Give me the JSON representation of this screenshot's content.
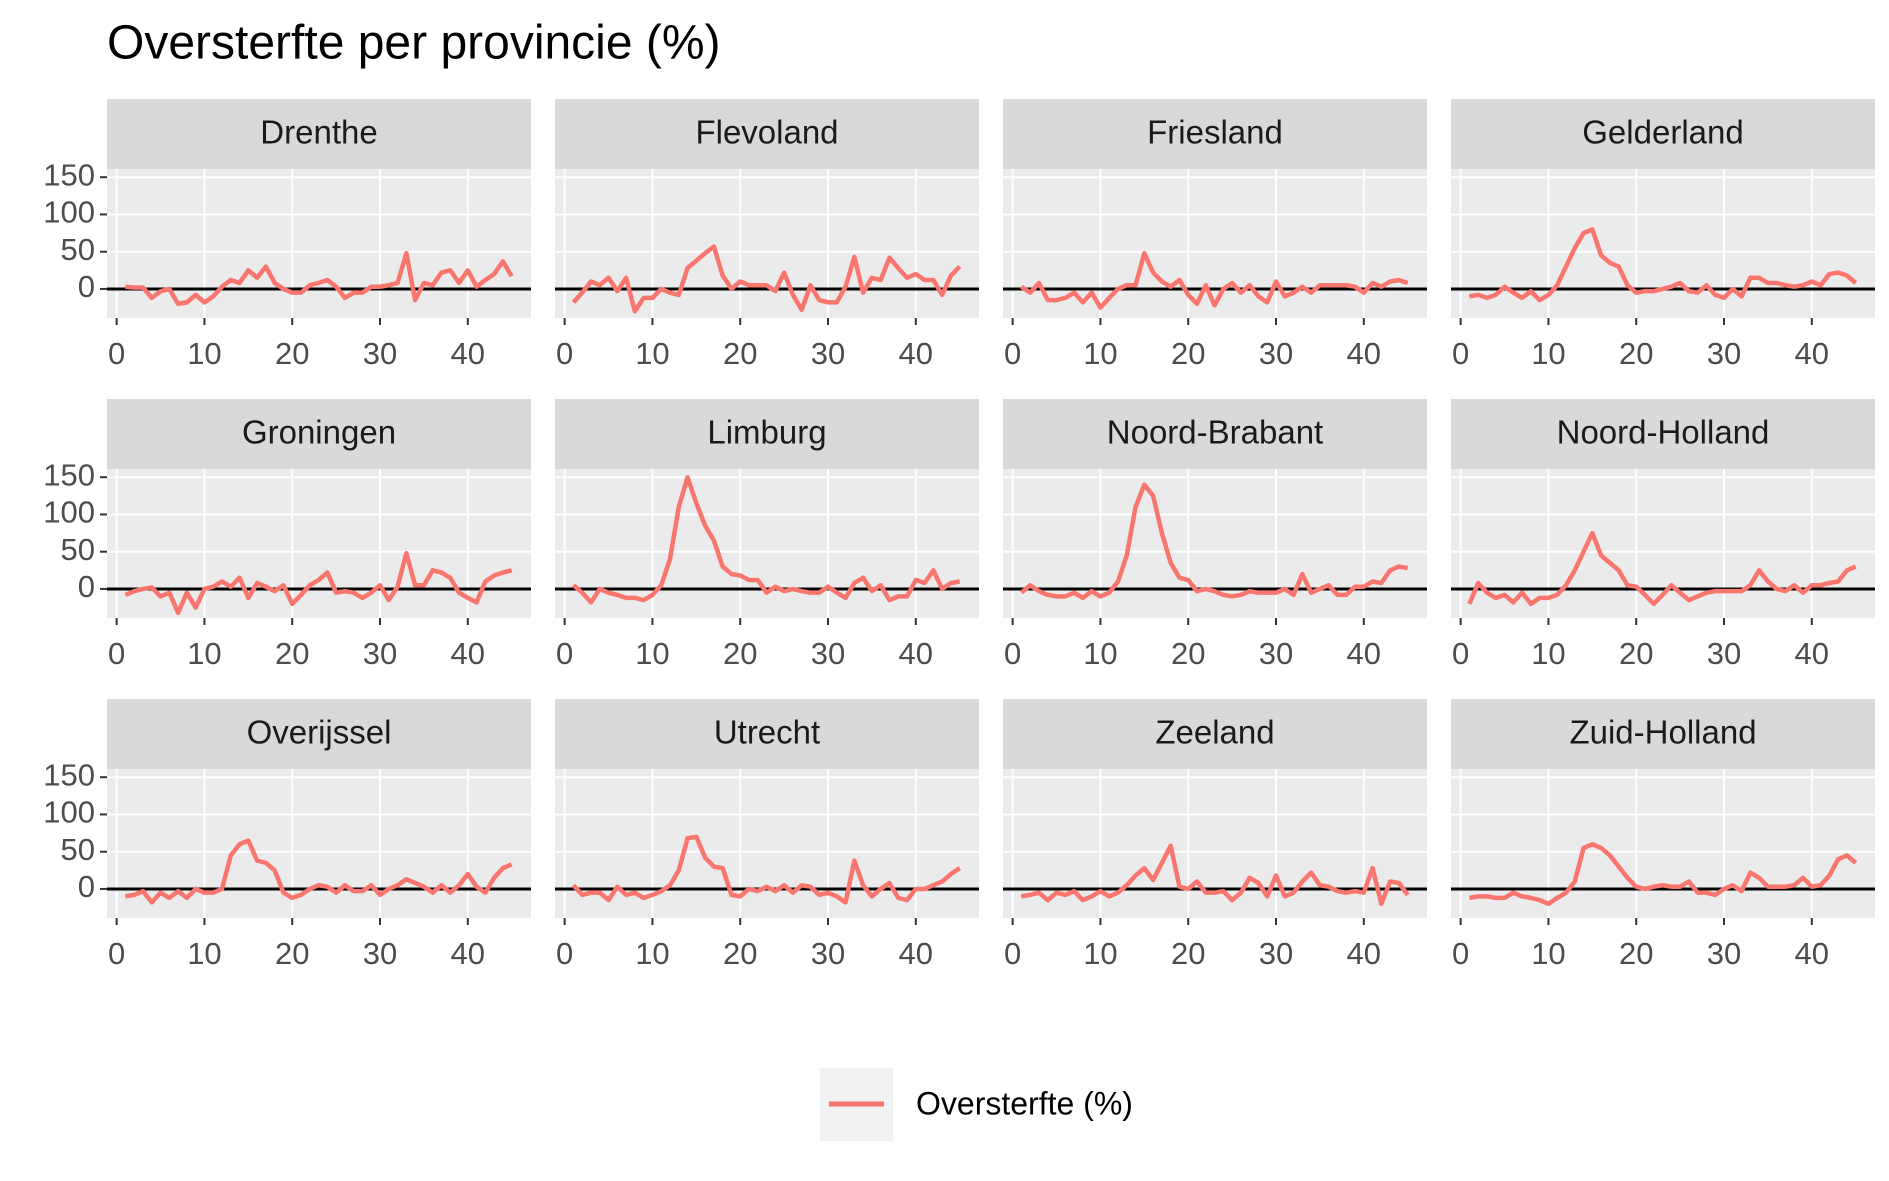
{
  "chart_data": {
    "type": "line",
    "title": "Oversterfte per provincie (%)",
    "legend": "Oversterfte (%)",
    "color": "#f8766d",
    "x": [
      1,
      2,
      3,
      4,
      5,
      6,
      7,
      8,
      9,
      10,
      11,
      12,
      13,
      14,
      15,
      16,
      17,
      18,
      19,
      20,
      21,
      22,
      23,
      24,
      25,
      26,
      27,
      28,
      29,
      30,
      31,
      32,
      33,
      34,
      35,
      36,
      37,
      38,
      39,
      40,
      41,
      42,
      43,
      44,
      45
    ],
    "xlim": [
      -1.1,
      47.2
    ],
    "xticks": [
      0,
      10,
      20,
      30,
      40
    ],
    "ylim": [
      -39,
      161
    ],
    "yticks": [
      0,
      50,
      100,
      150
    ],
    "hline": 0,
    "series": [
      {
        "name": "Drenthe",
        "values": [
          3,
          2,
          2,
          -12,
          -3,
          0,
          -20,
          -18,
          -8,
          -18,
          -10,
          3,
          12,
          8,
          25,
          15,
          30,
          8,
          0,
          -5,
          -5,
          5,
          8,
          12,
          3,
          -12,
          -5,
          -5,
          3,
          3,
          5,
          8,
          48,
          -15,
          8,
          5,
          22,
          25,
          8,
          25,
          3,
          12,
          20,
          37,
          17
        ]
      },
      {
        "name": "Flevoland",
        "values": [
          -18,
          -5,
          10,
          5,
          15,
          -3,
          15,
          -30,
          -12,
          -12,
          0,
          -5,
          -8,
          28,
          38,
          48,
          57,
          18,
          0,
          10,
          5,
          5,
          5,
          -3,
          22,
          -8,
          -28,
          5,
          -15,
          -18,
          -18,
          3,
          43,
          -5,
          15,
          12,
          42,
          28,
          15,
          20,
          12,
          12,
          -8,
          18,
          30
        ]
      },
      {
        "name": "Friesland",
        "values": [
          3,
          -5,
          8,
          -15,
          -15,
          -12,
          -5,
          -18,
          -5,
          -25,
          -12,
          0,
          5,
          5,
          48,
          22,
          10,
          3,
          12,
          -8,
          -20,
          5,
          -22,
          0,
          8,
          -5,
          5,
          -10,
          -18,
          10,
          -10,
          -5,
          3,
          -5,
          5,
          5,
          5,
          5,
          3,
          -5,
          8,
          3,
          10,
          12,
          8
        ]
      },
      {
        "name": "Gelderland",
        "values": [
          -10,
          -8,
          -12,
          -8,
          3,
          -5,
          -12,
          -3,
          -15,
          -8,
          5,
          30,
          55,
          75,
          80,
          45,
          35,
          30,
          5,
          -5,
          -3,
          -3,
          0,
          3,
          8,
          -3,
          -5,
          5,
          -8,
          -12,
          0,
          -10,
          15,
          15,
          8,
          8,
          5,
          3,
          5,
          10,
          5,
          20,
          22,
          18,
          8
        ]
      },
      {
        "name": "Groningen",
        "values": [
          -8,
          -3,
          0,
          2,
          -10,
          -5,
          -32,
          -5,
          -25,
          0,
          3,
          10,
          3,
          15,
          -12,
          8,
          3,
          -3,
          5,
          -20,
          -8,
          5,
          12,
          22,
          -5,
          -3,
          -5,
          -12,
          -5,
          5,
          -15,
          3,
          48,
          5,
          5,
          25,
          22,
          15,
          -5,
          -12,
          -18,
          10,
          18,
          22,
          25
        ]
      },
      {
        "name": "Limburg",
        "values": [
          5,
          -5,
          -18,
          0,
          -5,
          -8,
          -12,
          -12,
          -15,
          -8,
          5,
          40,
          110,
          150,
          115,
          85,
          65,
          30,
          20,
          18,
          12,
          12,
          -5,
          3,
          -3,
          0,
          -3,
          -5,
          -5,
          3,
          -5,
          -12,
          8,
          15,
          -3,
          5,
          -15,
          -10,
          -10,
          12,
          8,
          25,
          0,
          8,
          10
        ]
      },
      {
        "name": "Noord-Brabant",
        "values": [
          -5,
          5,
          -3,
          -8,
          -10,
          -10,
          -5,
          -12,
          -3,
          -10,
          -5,
          10,
          45,
          110,
          140,
          125,
          75,
          35,
          15,
          12,
          -3,
          0,
          -3,
          -8,
          -10,
          -8,
          -3,
          -5,
          -5,
          -5,
          0,
          -8,
          20,
          -5,
          0,
          5,
          -8,
          -8,
          3,
          3,
          10,
          8,
          25,
          30,
          28
        ]
      },
      {
        "name": "Noord-Holland",
        "values": [
          -20,
          8,
          -5,
          -12,
          -8,
          -18,
          -5,
          -20,
          -12,
          -12,
          -8,
          5,
          25,
          50,
          75,
          45,
          35,
          25,
          5,
          3,
          -8,
          -20,
          -8,
          5,
          -5,
          -15,
          -10,
          -5,
          -3,
          -3,
          -3,
          -3,
          5,
          25,
          10,
          0,
          -3,
          5,
          -5,
          5,
          5,
          8,
          10,
          25,
          30
        ]
      },
      {
        "name": "Overijssel",
        "values": [
          -10,
          -8,
          -3,
          -18,
          -5,
          -12,
          -3,
          -12,
          0,
          -5,
          -5,
          0,
          45,
          60,
          65,
          38,
          35,
          25,
          -5,
          -12,
          -8,
          0,
          5,
          3,
          -5,
          5,
          -3,
          -3,
          5,
          -8,
          0,
          5,
          13,
          8,
          3,
          -5,
          5,
          -5,
          5,
          20,
          3,
          -5,
          15,
          28,
          33
        ]
      },
      {
        "name": "Utrecht",
        "values": [
          5,
          -8,
          -5,
          -5,
          -15,
          3,
          -8,
          -5,
          -12,
          -8,
          -3,
          5,
          25,
          68,
          70,
          42,
          30,
          28,
          -8,
          -10,
          0,
          -3,
          3,
          -3,
          5,
          -5,
          5,
          3,
          -8,
          -5,
          -10,
          -18,
          38,
          5,
          -10,
          0,
          8,
          -12,
          -15,
          0,
          0,
          5,
          10,
          20,
          28
        ]
      },
      {
        "name": "Zeeland",
        "values": [
          -10,
          -8,
          -5,
          -15,
          -5,
          -8,
          -3,
          -15,
          -10,
          -3,
          -10,
          -5,
          5,
          18,
          28,
          12,
          35,
          58,
          3,
          0,
          10,
          -5,
          -5,
          -3,
          -15,
          -5,
          15,
          8,
          -10,
          18,
          -10,
          -5,
          10,
          22,
          5,
          3,
          -3,
          -5,
          -3,
          -5,
          28,
          -20,
          10,
          8,
          -8
        ]
      },
      {
        "name": "Zuid-Holland",
        "values": [
          -12,
          -10,
          -10,
          -12,
          -12,
          -5,
          -10,
          -12,
          -15,
          -20,
          -12,
          -5,
          10,
          55,
          60,
          55,
          45,
          30,
          15,
          3,
          0,
          3,
          5,
          3,
          3,
          10,
          -5,
          -5,
          -8,
          0,
          5,
          -3,
          22,
          15,
          3,
          3,
          3,
          5,
          15,
          3,
          5,
          18,
          40,
          45,
          35
        ]
      }
    ]
  }
}
